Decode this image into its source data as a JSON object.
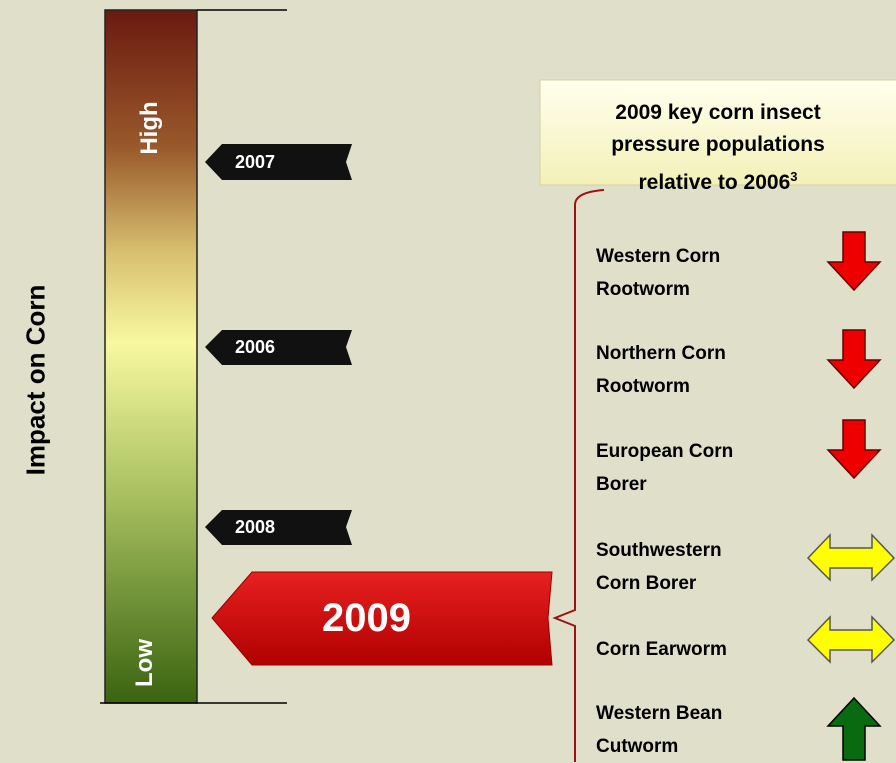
{
  "axis_label": "Impact on Corn",
  "scale": {
    "top": "High",
    "bottom": "Low"
  },
  "year_markers": [
    "2007",
    "2006",
    "2008"
  ],
  "current_year": "2009",
  "panel": {
    "title_lines": [
      "2009 key corn insect",
      "pressure populations",
      "relative to 2006"
    ],
    "title_superscript": "3",
    "insects": [
      "Western Corn Rootworm",
      "Northern Corn Rootworm",
      "European Corn Borer",
      "Southwestern Corn Borer",
      "Corn Earworm",
      "Western Bean Cutworm"
    ]
  }
}
